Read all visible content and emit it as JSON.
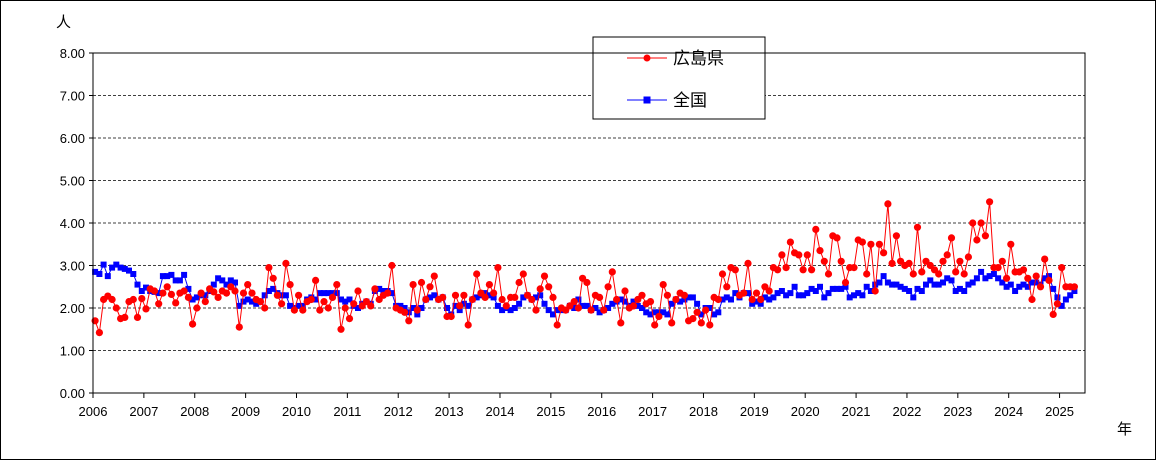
{
  "chart_data": {
    "type": "line",
    "y_unit_label": "人",
    "x_unit_label": "年",
    "ylim": [
      0,
      8
    ],
    "y_ticks": [
      "0.00",
      "1.00",
      "2.00",
      "3.00",
      "4.00",
      "5.00",
      "6.00",
      "7.00",
      "8.00"
    ],
    "x_ticks": [
      "2006",
      "2007",
      "2008",
      "2009",
      "2010",
      "2011",
      "2012",
      "2013",
      "2014",
      "2015",
      "2016",
      "2017",
      "2018",
      "2019",
      "2020",
      "2021",
      "2022",
      "2023",
      "2024",
      "2025"
    ],
    "x_start": "2006-01",
    "x_end": "2025-06",
    "grid": "horizontal dashed",
    "legend_position": "top-center",
    "series": [
      {
        "name": "広島県",
        "color": "#ff0000",
        "marker": "circle",
        "values": [
          1.7,
          1.42,
          2.2,
          2.28,
          2.2,
          2.0,
          1.75,
          1.78,
          2.15,
          2.2,
          1.78,
          2.22,
          1.98,
          2.45,
          2.4,
          2.1,
          2.35,
          2.5,
          2.32,
          2.12,
          2.35,
          2.4,
          2.25,
          1.62,
          2.0,
          2.35,
          2.15,
          2.45,
          2.38,
          2.25,
          2.4,
          2.35,
          2.5,
          2.4,
          1.55,
          2.35,
          2.55,
          2.35,
          2.2,
          2.15,
          2.0,
          2.95,
          2.7,
          2.3,
          2.1,
          3.05,
          2.55,
          1.95,
          2.3,
          1.95,
          2.15,
          2.2,
          2.65,
          1.95,
          2.15,
          2.0,
          2.25,
          2.55,
          1.5,
          2.0,
          1.75,
          2.1,
          2.4,
          2.05,
          2.15,
          2.05,
          2.45,
          2.2,
          2.3,
          2.35,
          3.0,
          2.0,
          1.95,
          1.9,
          1.7,
          2.55,
          1.95,
          2.6,
          2.2,
          2.5,
          2.75,
          2.2,
          2.25,
          1.8,
          1.8,
          2.3,
          2.05,
          2.3,
          1.6,
          2.2,
          2.8,
          2.35,
          2.25,
          2.55,
          2.35,
          2.95,
          2.2,
          2.05,
          2.25,
          2.25,
          2.6,
          2.8,
          2.3,
          2.2,
          1.95,
          2.45,
          2.75,
          2.5,
          2.25,
          1.6,
          2.0,
          1.95,
          2.05,
          2.15,
          2.0,
          2.7,
          2.6,
          1.95,
          2.3,
          2.25,
          1.95,
          2.5,
          2.85,
          2.2,
          1.65,
          2.4,
          2.0,
          2.05,
          2.2,
          2.3,
          2.1,
          2.15,
          1.6,
          1.8,
          2.55,
          2.3,
          1.65,
          2.2,
          2.35,
          2.3,
          1.7,
          1.75,
          1.9,
          1.65,
          1.95,
          1.6,
          2.25,
          2.2,
          2.8,
          2.5,
          2.95,
          2.9,
          2.3,
          2.35,
          3.05,
          2.2,
          2.35,
          2.2,
          2.5,
          2.4,
          2.95,
          2.9,
          3.25,
          2.95,
          3.55,
          3.3,
          3.25,
          2.9,
          3.25,
          2.9,
          3.85,
          3.35,
          3.1,
          2.8,
          3.7,
          3.65,
          3.1,
          2.6,
          2.95,
          2.95,
          3.6,
          3.55,
          2.8,
          3.5,
          2.4,
          3.5,
          3.3,
          4.45,
          3.05,
          3.7,
          3.1,
          3.0,
          3.05,
          2.8,
          3.9,
          2.85,
          3.1,
          3.0,
          2.9,
          2.8,
          3.1,
          3.25,
          3.65,
          2.85,
          3.1,
          2.8,
          3.2,
          4.0,
          3.6,
          4.0,
          3.7,
          4.5,
          2.95,
          2.95,
          3.1,
          2.7,
          3.5,
          2.85,
          2.85,
          2.9,
          2.7,
          2.2,
          2.75,
          2.5,
          3.15,
          2.65,
          1.85,
          2.1,
          2.95,
          2.5,
          2.5,
          2.5
        ]
      },
      {
        "name": "全国",
        "color": "#0000ff",
        "marker": "square",
        "values": [
          2.85,
          2.8,
          3.02,
          2.75,
          2.95,
          3.02,
          2.95,
          2.92,
          2.88,
          2.8,
          2.55,
          2.4,
          2.48,
          2.4,
          2.38,
          2.35,
          2.75,
          2.75,
          2.78,
          2.65,
          2.65,
          2.78,
          2.45,
          2.2,
          2.25,
          2.3,
          2.3,
          2.4,
          2.55,
          2.7,
          2.65,
          2.55,
          2.65,
          2.6,
          2.05,
          2.15,
          2.2,
          2.15,
          2.1,
          2.15,
          2.3,
          2.4,
          2.45,
          2.35,
          2.3,
          2.3,
          2.05,
          2.0,
          2.05,
          2.05,
          2.2,
          2.25,
          2.2,
          2.35,
          2.35,
          2.35,
          2.35,
          2.35,
          2.2,
          2.15,
          2.2,
          2.05,
          2.0,
          2.1,
          2.15,
          2.1,
          2.4,
          2.45,
          2.4,
          2.4,
          2.35,
          2.05,
          2.05,
          2.0,
          1.9,
          2.0,
          1.85,
          2.0,
          2.2,
          2.25,
          2.3,
          2.2,
          2.25,
          2.0,
          1.85,
          2.05,
          1.95,
          2.1,
          2.05,
          2.2,
          2.25,
          2.3,
          2.35,
          2.3,
          2.25,
          2.05,
          1.95,
          2.0,
          1.95,
          2.0,
          2.1,
          2.25,
          2.3,
          2.2,
          2.25,
          2.3,
          2.1,
          1.95,
          1.85,
          1.95,
          1.95,
          1.95,
          2.05,
          2.0,
          2.2,
          2.05,
          2.05,
          1.95,
          2.0,
          1.9,
          1.95,
          2.0,
          2.1,
          2.15,
          2.2,
          2.15,
          2.05,
          2.15,
          2.05,
          2.0,
          1.9,
          1.85,
          1.9,
          1.9,
          1.9,
          1.85,
          2.1,
          2.2,
          2.15,
          2.2,
          2.25,
          2.25,
          2.1,
          1.85,
          2.0,
          2.0,
          1.85,
          1.9,
          2.2,
          2.25,
          2.2,
          2.35,
          2.25,
          2.35,
          2.35,
          2.1,
          2.15,
          2.1,
          2.25,
          2.2,
          2.25,
          2.35,
          2.4,
          2.3,
          2.35,
          2.5,
          2.3,
          2.3,
          2.35,
          2.45,
          2.4,
          2.5,
          2.25,
          2.35,
          2.45,
          2.45,
          2.45,
          2.5,
          2.25,
          2.3,
          2.35,
          2.3,
          2.5,
          2.4,
          2.55,
          2.6,
          2.75,
          2.6,
          2.55,
          2.55,
          2.5,
          2.45,
          2.4,
          2.25,
          2.45,
          2.4,
          2.55,
          2.65,
          2.55,
          2.55,
          2.6,
          2.7,
          2.65,
          2.4,
          2.45,
          2.4,
          2.55,
          2.6,
          2.7,
          2.85,
          2.7,
          2.75,
          2.8,
          2.7,
          2.6,
          2.5,
          2.55,
          2.4,
          2.5,
          2.55,
          2.5,
          2.6,
          2.6,
          2.55,
          2.7,
          2.75,
          2.45,
          2.25,
          2.05,
          2.2,
          2.3,
          2.4
        ]
      }
    ]
  }
}
